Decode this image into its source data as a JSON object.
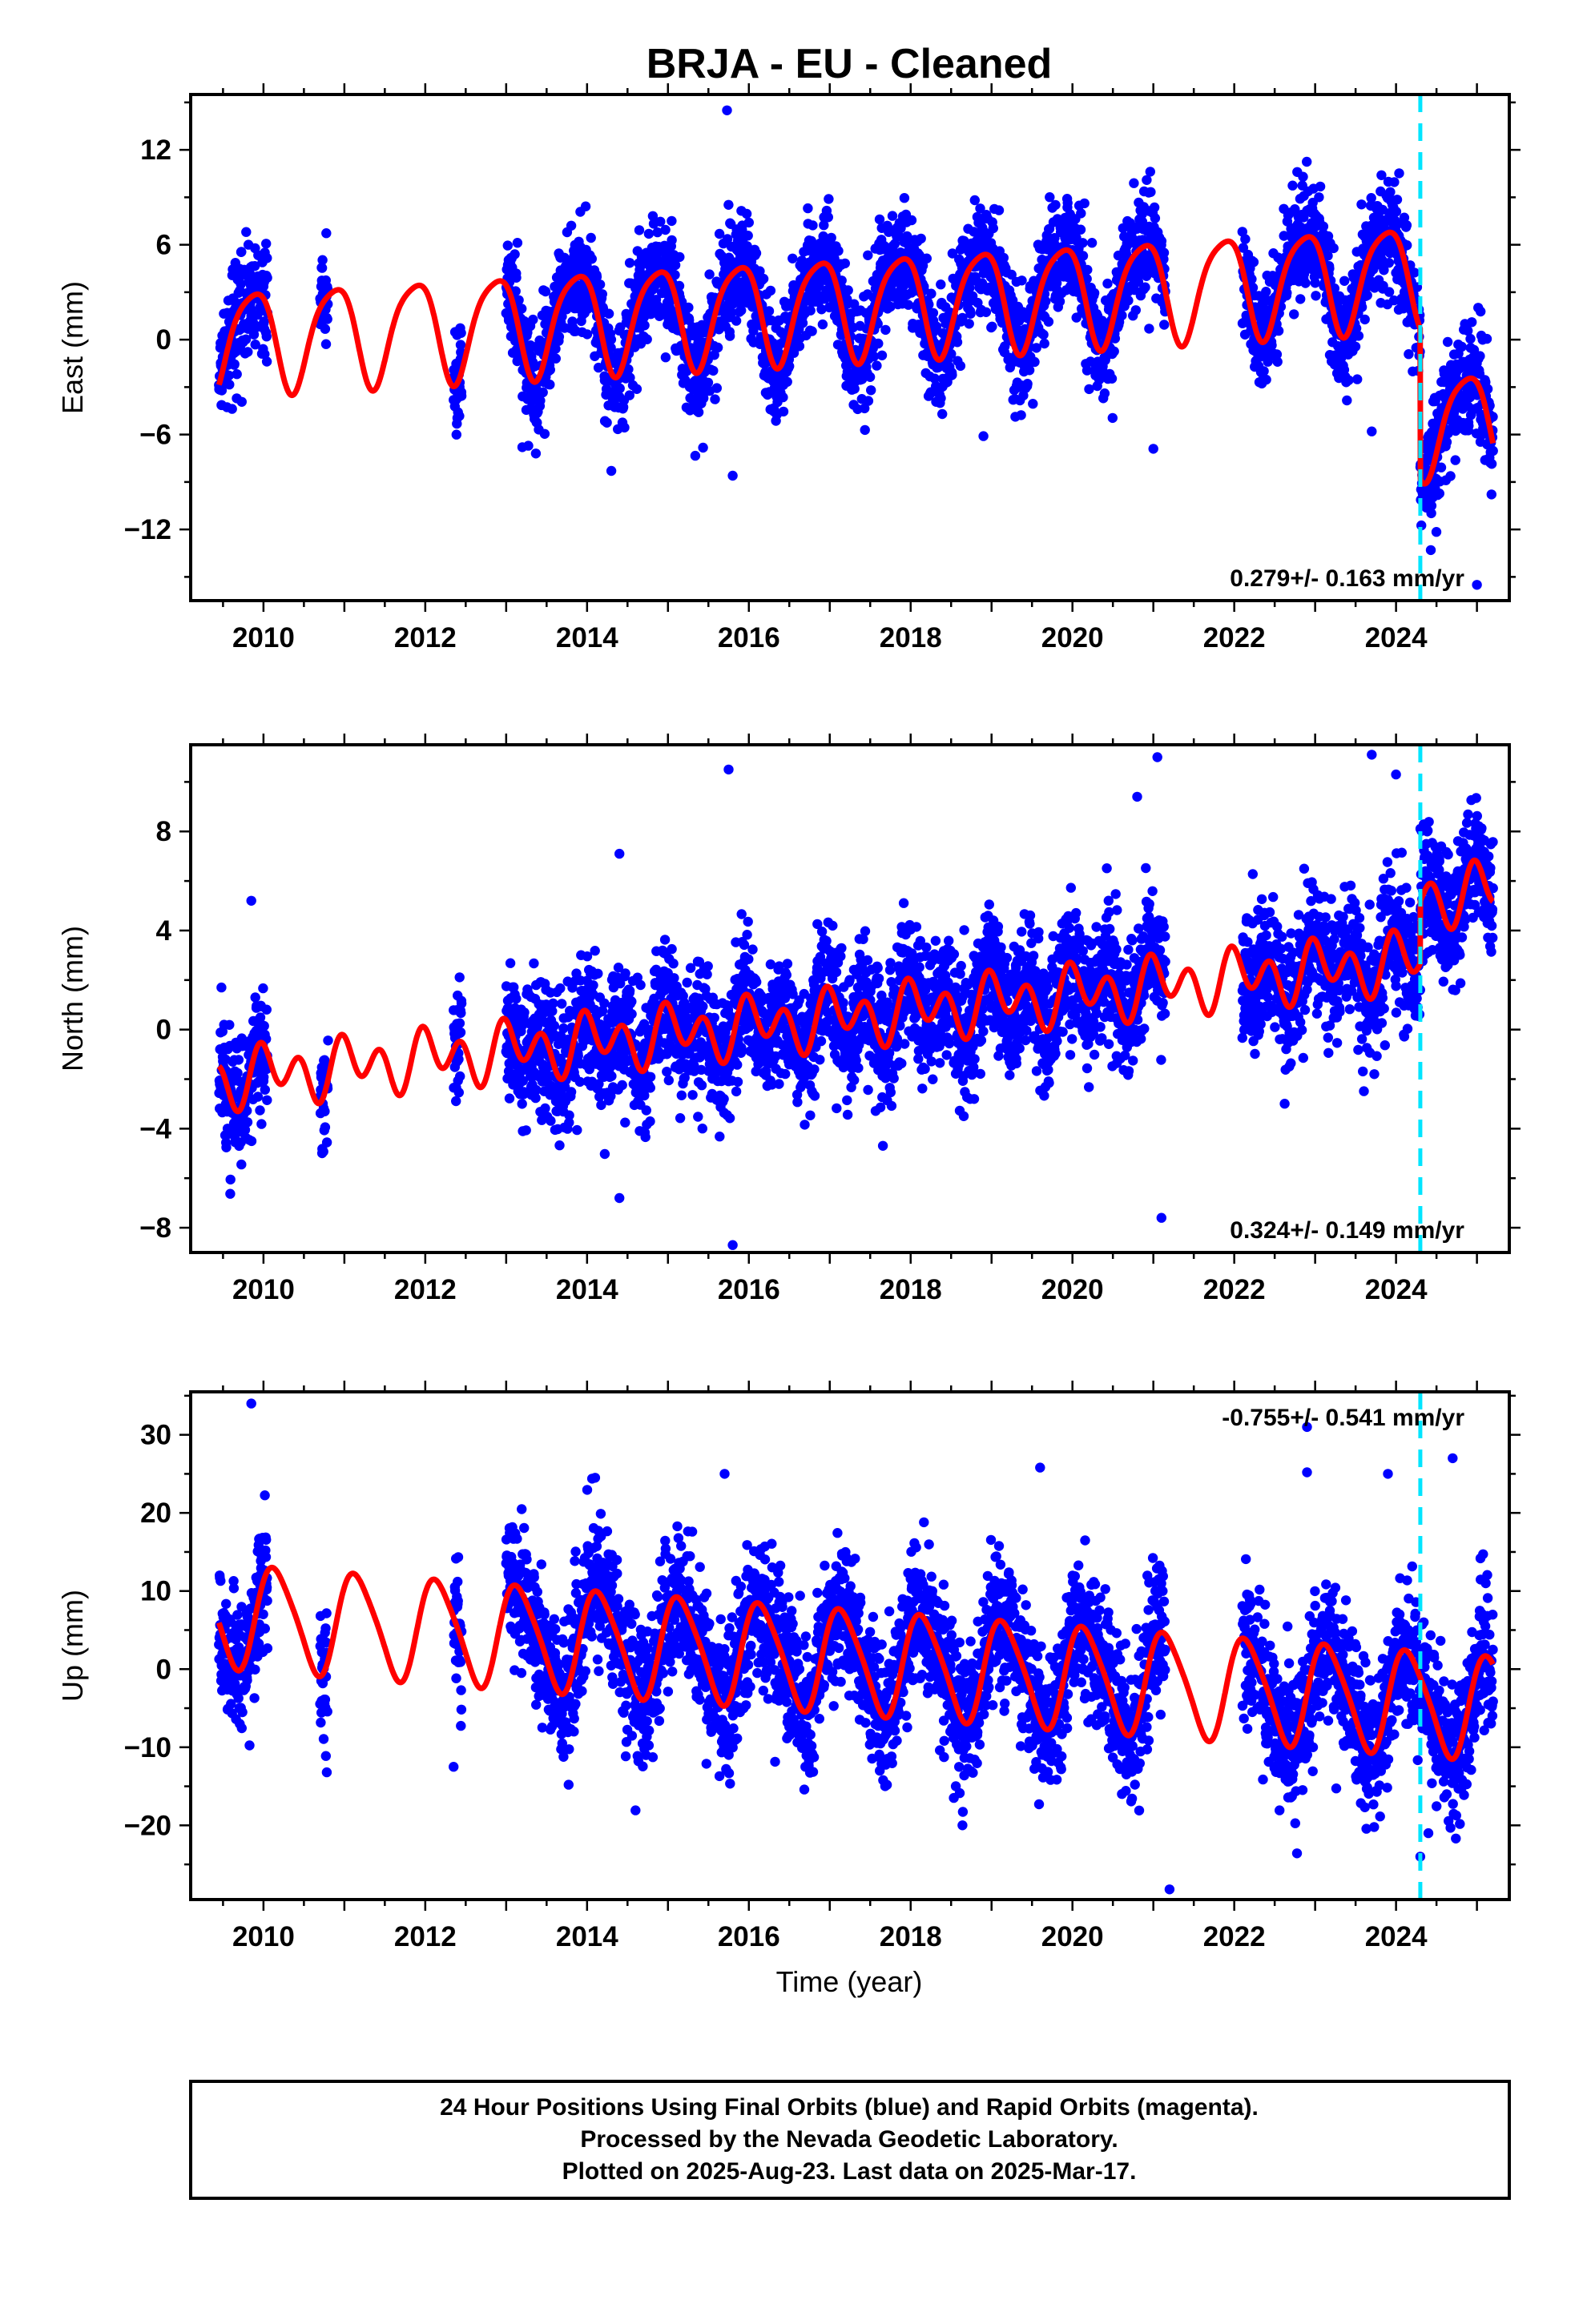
{
  "title": "BRJA  - EU - Cleaned",
  "xlabel": "Time (year)",
  "footer": {
    "line1": "24 Hour Positions Using Final Orbits (blue) and Rapid Orbits (magenta).",
    "line2": "Processed by the Nevada Geodetic Laboratory.",
    "line3": "Plotted on 2025-Aug-23. Last data on 2025-Mar-17."
  },
  "colors": {
    "points": "#0000ff",
    "model": "#ff0000",
    "event_line": "#00e5ff"
  },
  "chart_data": [
    {
      "type": "scatter",
      "name": "east",
      "ylabel": "East (mm)",
      "rate_text": "0.279+/- 0.163 mm/yr",
      "xlim": [
        2009.1,
        2025.4
      ],
      "ylim": [
        -16.5,
        15.5
      ],
      "yticks": [
        12,
        6,
        0,
        -6,
        -12
      ],
      "xticks": [
        2010,
        2012,
        2014,
        2016,
        2018,
        2020,
        2022,
        2024
      ],
      "event_x": 2024.3,
      "data_spans": [
        [
          2009.45,
          2010.05
        ],
        [
          2010.7,
          2010.8
        ],
        [
          2012.35,
          2012.45
        ],
        [
          2013.0,
          2021.15
        ],
        [
          2022.1,
          2025.2
        ]
      ],
      "model": {
        "offset": 0.0,
        "trend": 0.279,
        "t0": 2009.45,
        "annual_amp": 3.2,
        "annual_phase": 2.4,
        "semi_amp": 0.6,
        "semi_phase": 0.5,
        "step_x": 2024.3,
        "step_size": -9.5
      },
      "noise_sigma": 1.7,
      "outliers": [
        [
          2015.73,
          14.5
        ],
        [
          2022.85,
          10.3
        ],
        [
          2013.2,
          -6.8
        ],
        [
          2014.3,
          -8.3
        ],
        [
          2015.8,
          -8.6
        ],
        [
          2018.9,
          -6.1
        ],
        [
          2021.0,
          -6.9
        ],
        [
          2023.7,
          -5.8
        ],
        [
          2025.0,
          -15.5
        ]
      ]
    },
    {
      "type": "scatter",
      "name": "north",
      "ylabel": "North (mm)",
      "rate_text": "0.324+/- 0.149 mm/yr",
      "xlim": [
        2009.1,
        2025.4
      ],
      "ylim": [
        -9.0,
        11.5
      ],
      "yticks": [
        8,
        4,
        0,
        -4,
        -8
      ],
      "xticks": [
        2010,
        2012,
        2014,
        2016,
        2018,
        2020,
        2022,
        2024
      ],
      "event_x": 2024.3,
      "data_spans": [
        [
          2009.45,
          2010.05
        ],
        [
          2010.7,
          2010.8
        ],
        [
          2012.35,
          2012.45
        ],
        [
          2013.0,
          2021.15
        ],
        [
          2022.1,
          2025.2
        ]
      ],
      "model": {
        "offset": -2.0,
        "trend": 0.324,
        "t0": 2009.45,
        "annual_amp": 0.6,
        "annual_phase": 1.0,
        "semi_amp": 0.9,
        "semi_phase": 2.2,
        "step_x": 2024.3,
        "step_size": 2.5
      },
      "noise_sigma": 1.3,
      "outliers": [
        [
          2015.75,
          10.5
        ],
        [
          2021.05,
          11.0
        ],
        [
          2020.8,
          9.4
        ],
        [
          2023.7,
          11.1
        ],
        [
          2024.0,
          10.3
        ],
        [
          2009.85,
          5.2
        ],
        [
          2014.4,
          7.1
        ],
        [
          2015.8,
          -8.7
        ],
        [
          2021.1,
          -7.6
        ],
        [
          2014.4,
          -6.8
        ]
      ]
    },
    {
      "type": "scatter",
      "name": "up",
      "ylabel": "Up (mm)",
      "rate_text": "-0.755+/- 0.541 mm/yr",
      "xlim": [
        2009.1,
        2025.4
      ],
      "ylim": [
        -29.5,
        35.5
      ],
      "yticks": [
        30,
        20,
        10,
        0,
        -10,
        -20
      ],
      "xticks": [
        2010,
        2012,
        2014,
        2016,
        2018,
        2020,
        2022,
        2024
      ],
      "event_x": 2024.3,
      "data_spans": [
        [
          2009.45,
          2010.05
        ],
        [
          2010.7,
          2010.8
        ],
        [
          2012.35,
          2012.45
        ],
        [
          2013.0,
          2021.15
        ],
        [
          2022.1,
          2025.2
        ]
      ],
      "model": {
        "offset": 7.0,
        "trend": -0.755,
        "t0": 2009.45,
        "annual_amp": 6.5,
        "annual_phase": 0.6,
        "semi_amp": 1.0,
        "semi_phase": 1.5,
        "step_x": 2024.3,
        "step_size": 0.0
      },
      "noise_sigma": 4.5,
      "outliers": [
        [
          2009.85,
          34.0
        ],
        [
          2012.35,
          -12.5
        ],
        [
          2014.1,
          24.5
        ],
        [
          2015.7,
          25.0
        ],
        [
          2019.6,
          25.8
        ],
        [
          2021.2,
          -28.2
        ],
        [
          2022.9,
          31.0
        ],
        [
          2022.9,
          25.2
        ],
        [
          2024.3,
          -24.0
        ],
        [
          2024.4,
          -21.0
        ],
        [
          2023.9,
          25.0
        ],
        [
          2024.7,
          27.0
        ]
      ]
    }
  ]
}
